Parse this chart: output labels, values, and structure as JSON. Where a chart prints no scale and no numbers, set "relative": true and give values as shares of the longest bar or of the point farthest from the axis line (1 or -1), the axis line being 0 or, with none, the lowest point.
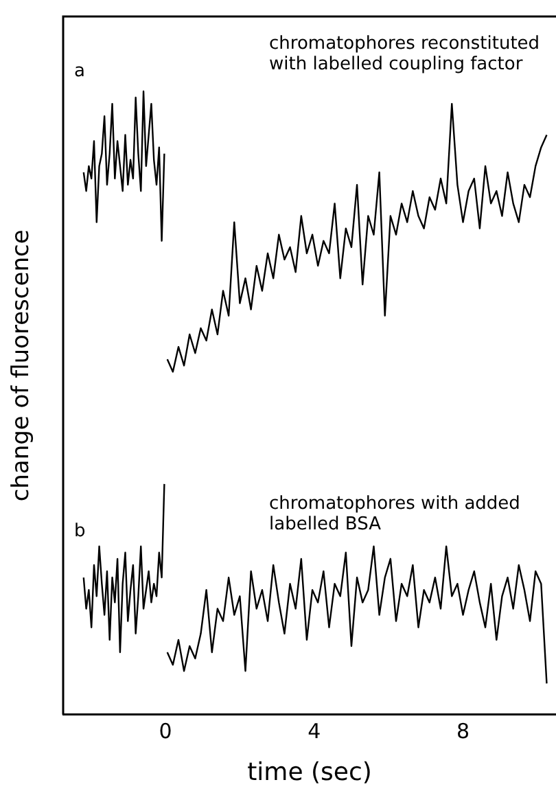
{
  "chart_data": {
    "type": "line",
    "relative": true,
    "xlabel": "time (sec)",
    "ylabel": "change of fluorescence",
    "xlim": [
      -2.75,
      10.5
    ],
    "xticks": [
      0,
      4,
      8
    ],
    "tick_labels": "x",
    "grid": false,
    "legend": false,
    "marker": "none",
    "line_style": "solid",
    "annotations": [
      "a",
      "chromatophores reconstituted with labelled coupling factor",
      "b",
      "chromatophores with added labelled BSA"
    ],
    "series": [
      {
        "color": "#000000",
        "x": [
          -2.2,
          -2.13,
          -2.06,
          -1.99,
          -1.92,
          -1.85,
          -1.78,
          -1.71,
          -1.64,
          -1.57,
          -1.5,
          -1.43,
          -1.36,
          -1.29,
          -1.22,
          -1.15,
          -1.08,
          -1.01,
          -0.94,
          -0.87,
          -0.8,
          -0.73,
          -0.66,
          -0.59,
          -0.52,
          -0.45,
          -0.38,
          -0.31,
          -0.24,
          -0.17,
          -0.1,
          -0.03,
          0,
          0.05,
          0.2,
          0.35,
          0.5,
          0.65,
          0.8,
          0.95,
          1.1,
          1.25,
          1.4,
          1.55,
          1.7,
          1.85,
          2,
          2.15,
          2.3,
          2.45,
          2.6,
          2.75,
          2.9,
          3.05,
          3.2,
          3.35,
          3.5,
          3.65,
          3.8,
          3.95,
          4.1,
          4.25,
          4.4,
          4.55,
          4.7,
          4.85,
          5,
          5.15,
          5.3,
          5.45,
          5.6,
          5.75,
          5.9,
          6.05,
          6.2,
          6.35,
          6.5,
          6.65,
          6.8,
          6.95,
          7.1,
          7.25,
          7.4,
          7.55,
          7.7,
          7.85,
          8,
          8.15,
          8.3,
          8.45,
          8.6,
          8.75,
          8.9,
          9.05,
          9.2,
          9.35,
          9.5,
          9.65,
          9.8,
          9.95,
          10.1,
          10.25
        ],
        "values": [
          0.87,
          0.84,
          0.88,
          0.86,
          0.92,
          0.79,
          0.88,
          0.9,
          0.96,
          0.85,
          0.9,
          0.98,
          0.86,
          0.92,
          0.88,
          0.84,
          0.93,
          0.85,
          0.89,
          0.86,
          0.99,
          0.9,
          0.84,
          1.0,
          0.88,
          0.93,
          0.98,
          0.89,
          0.85,
          0.91,
          0.76,
          0.9,
          null,
          0.57,
          0.55,
          0.59,
          0.56,
          0.61,
          0.58,
          0.62,
          0.6,
          0.65,
          0.61,
          0.68,
          0.64,
          0.79,
          0.66,
          0.7,
          0.65,
          0.72,
          0.68,
          0.74,
          0.7,
          0.77,
          0.73,
          0.75,
          0.71,
          0.8,
          0.74,
          0.77,
          0.72,
          0.76,
          0.74,
          0.82,
          0.7,
          0.78,
          0.75,
          0.85,
          0.69,
          0.8,
          0.77,
          0.87,
          0.64,
          0.8,
          0.77,
          0.82,
          0.79,
          0.84,
          0.8,
          0.78,
          0.83,
          0.81,
          0.86,
          0.82,
          0.98,
          0.85,
          0.79,
          0.84,
          0.86,
          0.78,
          0.88,
          0.82,
          0.84,
          0.8,
          0.87,
          0.82,
          0.79,
          0.85,
          0.83,
          0.88,
          0.91,
          0.93
        ]
      },
      {
        "color": "#000000",
        "x": [
          -2.2,
          -2.13,
          -2.06,
          -1.99,
          -1.92,
          -1.85,
          -1.78,
          -1.71,
          -1.64,
          -1.57,
          -1.5,
          -1.43,
          -1.36,
          -1.29,
          -1.22,
          -1.15,
          -1.08,
          -1.01,
          -0.94,
          -0.87,
          -0.8,
          -0.73,
          -0.66,
          -0.59,
          -0.52,
          -0.45,
          -0.38,
          -0.31,
          -0.24,
          -0.17,
          -0.1,
          -0.03,
          0,
          0.05,
          0.2,
          0.35,
          0.5,
          0.65,
          0.8,
          0.95,
          1.1,
          1.25,
          1.4,
          1.55,
          1.7,
          1.85,
          2,
          2.15,
          2.3,
          2.45,
          2.6,
          2.75,
          2.9,
          3.05,
          3.2,
          3.35,
          3.5,
          3.65,
          3.8,
          3.95,
          4.1,
          4.25,
          4.4,
          4.55,
          4.7,
          4.85,
          5,
          5.15,
          5.3,
          5.45,
          5.6,
          5.75,
          5.9,
          6.05,
          6.2,
          6.35,
          6.5,
          6.65,
          6.8,
          6.95,
          7.1,
          7.25,
          7.4,
          7.55,
          7.7,
          7.85,
          8,
          8.15,
          8.3,
          8.45,
          8.6,
          8.75,
          8.9,
          9.05,
          9.2,
          9.35,
          9.5,
          9.65,
          9.8,
          9.95,
          10.1,
          10.25
        ],
        "values": [
          0.22,
          0.17,
          0.2,
          0.14,
          0.24,
          0.19,
          0.27,
          0.21,
          0.16,
          0.23,
          0.12,
          0.22,
          0.18,
          0.25,
          0.1,
          0.21,
          0.26,
          0.15,
          0.2,
          0.24,
          0.13,
          0.19,
          0.27,
          0.17,
          0.2,
          0.23,
          0.18,
          0.21,
          0.19,
          0.26,
          0.22,
          0.37,
          null,
          0.1,
          0.08,
          0.12,
          0.07,
          0.11,
          0.09,
          0.13,
          0.2,
          0.1,
          0.17,
          0.15,
          0.22,
          0.16,
          0.19,
          0.07,
          0.23,
          0.17,
          0.2,
          0.15,
          0.24,
          0.18,
          0.13,
          0.21,
          0.17,
          0.25,
          0.12,
          0.2,
          0.18,
          0.23,
          0.14,
          0.21,
          0.19,
          0.26,
          0.11,
          0.22,
          0.18,
          0.2,
          0.27,
          0.16,
          0.22,
          0.25,
          0.15,
          0.21,
          0.19,
          0.24,
          0.14,
          0.2,
          0.18,
          0.22,
          0.17,
          0.27,
          0.19,
          0.21,
          0.16,
          0.2,
          0.23,
          0.18,
          0.14,
          0.21,
          0.12,
          0.19,
          0.22,
          0.17,
          0.24,
          0.2,
          0.15,
          0.23,
          0.21,
          0.05
        ]
      }
    ]
  }
}
